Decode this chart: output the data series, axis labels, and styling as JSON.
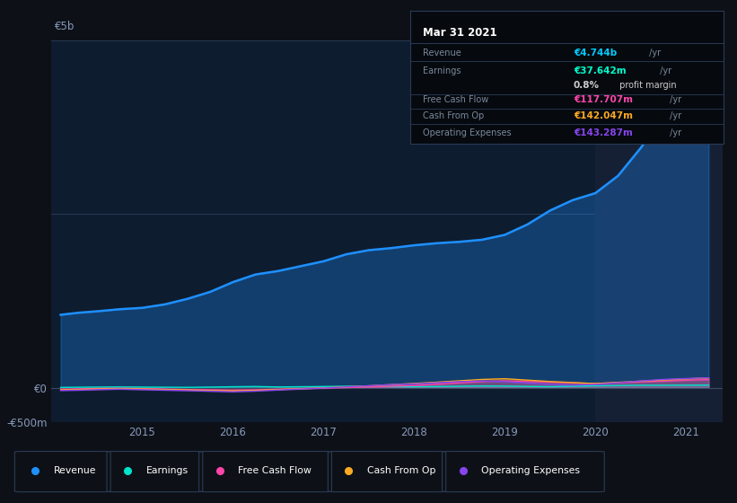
{
  "background_color": "#0d1117",
  "plot_bg_color": "#0e1c2f",
  "highlight_bg_color": "#162035",
  "years": [
    2014.1,
    2014.3,
    2014.5,
    2014.75,
    2015.0,
    2015.25,
    2015.5,
    2015.75,
    2016.0,
    2016.25,
    2016.5,
    2016.75,
    2017.0,
    2017.25,
    2017.5,
    2017.75,
    2018.0,
    2018.25,
    2018.5,
    2018.75,
    2019.0,
    2019.25,
    2019.5,
    2019.75,
    2020.0,
    2020.25,
    2020.5,
    2020.75,
    2021.0,
    2021.25
  ],
  "revenue": [
    1050,
    1080,
    1100,
    1130,
    1150,
    1200,
    1280,
    1380,
    1520,
    1630,
    1680,
    1750,
    1820,
    1920,
    1980,
    2010,
    2050,
    2080,
    2100,
    2130,
    2200,
    2350,
    2550,
    2700,
    2800,
    3050,
    3450,
    3900,
    4400,
    4744
  ],
  "earnings": [
    5,
    8,
    10,
    12,
    10,
    8,
    6,
    10,
    15,
    18,
    12,
    15,
    18,
    22,
    20,
    16,
    14,
    18,
    22,
    26,
    24,
    20,
    16,
    22,
    28,
    32,
    36,
    36,
    37,
    37.642
  ],
  "free_cash_flow": [
    -20,
    -15,
    -10,
    -8,
    -12,
    -18,
    -25,
    -30,
    -35,
    -30,
    -20,
    -12,
    -6,
    2,
    12,
    22,
    32,
    50,
    70,
    90,
    100,
    90,
    80,
    70,
    62,
    72,
    85,
    95,
    108,
    117.707
  ],
  "cash_from_op": [
    -30,
    -25,
    -18,
    -12,
    -18,
    -25,
    -32,
    -40,
    -45,
    -38,
    -25,
    -14,
    -2,
    14,
    28,
    45,
    62,
    80,
    100,
    120,
    130,
    110,
    90,
    75,
    60,
    78,
    95,
    112,
    128,
    142.047
  ],
  "operating_expenses": [
    -40,
    -35,
    -28,
    -20,
    -28,
    -35,
    -42,
    -50,
    -58,
    -48,
    -32,
    -18,
    -4,
    12,
    28,
    46,
    56,
    72,
    88,
    98,
    88,
    68,
    50,
    40,
    48,
    72,
    98,
    120,
    132,
    143.287
  ],
  "revenue_color": "#1e90ff",
  "earnings_color": "#00e5cc",
  "fcf_color": "#ff44aa",
  "cashop_color": "#ffaa22",
  "opex_color": "#8844ee",
  "title_text": "Mar 31 2021",
  "ylim": [
    -500,
    5000
  ],
  "xlim": [
    2014.0,
    2021.4
  ],
  "ytick_labels_left": [
    "€0",
    "-€500m"
  ],
  "ytick_vals_left": [
    0,
    -500
  ],
  "ytick_vals_grid": [
    0,
    2500,
    5000
  ],
  "xtick_labels": [
    "2015",
    "2016",
    "2017",
    "2018",
    "2019",
    "2020",
    "2021"
  ],
  "xtick_vals": [
    2015,
    2016,
    2017,
    2018,
    2019,
    2020,
    2021
  ],
  "legend_items": [
    {
      "label": "Revenue",
      "color": "#1e90ff"
    },
    {
      "label": "Earnings",
      "color": "#00e5cc"
    },
    {
      "label": "Free Cash Flow",
      "color": "#ff44aa"
    },
    {
      "label": "Cash From Op",
      "color": "#ffaa22"
    },
    {
      "label": "Operating Expenses",
      "color": "#8844ee"
    }
  ],
  "info_rows": [
    {
      "label": "Revenue",
      "value": "€4.744b",
      "unit": " /yr",
      "color": "#00ccff"
    },
    {
      "label": "Earnings",
      "value": "€37.642m",
      "unit": " /yr",
      "color": "#00ffcc"
    },
    {
      "label": "",
      "value": "0.8%",
      "unit": " profit margin",
      "color": "#ffffff"
    },
    {
      "label": "Free Cash Flow",
      "value": "€117.707m",
      "unit": " /yr",
      "color": "#ff44aa"
    },
    {
      "label": "Cash From Op",
      "value": "€142.047m",
      "unit": " /yr",
      "color": "#ffaa22"
    },
    {
      "label": "Operating Expenses",
      "value": "€143.287m",
      "unit": " /yr",
      "color": "#8844ee"
    }
  ]
}
